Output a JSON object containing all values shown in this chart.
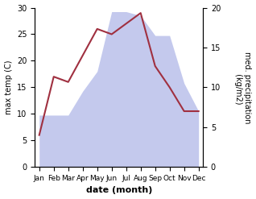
{
  "months": [
    "Jan",
    "Feb",
    "Mar",
    "Apr",
    "May",
    "Jun",
    "Jul",
    "Aug",
    "Sep",
    "Oct",
    "Nov",
    "Dec"
  ],
  "month_positions": [
    0,
    1,
    2,
    3,
    4,
    5,
    6,
    7,
    8,
    9,
    10,
    11
  ],
  "temp": [
    6.0,
    17.0,
    16.0,
    21.0,
    26.0,
    25.0,
    27.0,
    29.0,
    19.0,
    15.0,
    10.5,
    10.5
  ],
  "precip": [
    6.5,
    6.5,
    6.5,
    9.5,
    12.0,
    19.5,
    19.5,
    19.0,
    16.5,
    16.5,
    10.5,
    7.0
  ],
  "precip_color": "#b0b8e8",
  "temp_color": "#a03040",
  "ylim_left": [
    0,
    30
  ],
  "ylim_right": [
    0,
    20
  ],
  "xlabel": "date (month)",
  "ylabel_left": "max temp (C)",
  "ylabel_right": "med. precipitation\n (kg/m2)",
  "background_color": "#ffffff"
}
